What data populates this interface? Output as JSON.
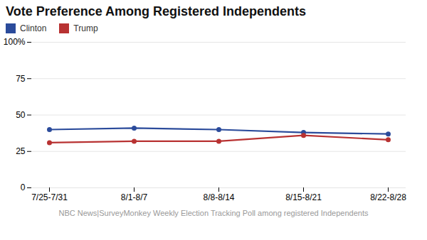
{
  "chart_data": {
    "type": "line",
    "title": "Vote Preference Among Registered Independents",
    "caption": "NBC News|SurveyMonkey Weekly Election Tracking Poll among registered Independents",
    "categories": [
      "7/25-7/31",
      "8/1-8/7",
      "8/8-8/14",
      "8/15-8/21",
      "8/22-8/28"
    ],
    "series": [
      {
        "name": "Clinton",
        "color": "#2b4b9b",
        "values": [
          40,
          41,
          40,
          38,
          37
        ]
      },
      {
        "name": "Trump",
        "color": "#b83232",
        "values": [
          31,
          32,
          32,
          36,
          33
        ]
      }
    ],
    "ylim": [
      0,
      100
    ],
    "yticks": [
      0,
      25,
      50,
      75,
      {
        "value": 100,
        "label": "100%"
      }
    ],
    "grid": true,
    "legend": "top",
    "marker": "circle"
  }
}
